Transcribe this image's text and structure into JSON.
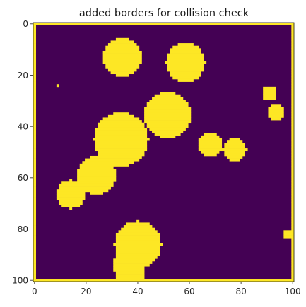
{
  "chart_data": {
    "type": "heatmap",
    "title": "added borders for collision check",
    "xlabel": "",
    "ylabel": "",
    "grid": false,
    "legend": "none",
    "colormap": "viridis",
    "colors": {
      "low": "#440154",
      "high": "#fde725"
    },
    "value_range": [
      0,
      1
    ],
    "grid_size": [
      101,
      101
    ],
    "xlim": [
      -0.5,
      100.5
    ],
    "ylim": [
      100.5,
      -0.5
    ],
    "x_ticks": [
      0,
      20,
      40,
      60,
      80,
      100
    ],
    "x_tick_labels": [
      "0",
      "20",
      "40",
      "60",
      "80",
      "100"
    ],
    "y_ticks": [
      0,
      20,
      40,
      60,
      80,
      100
    ],
    "y_tick_labels": [
      "0",
      "20",
      "40",
      "60",
      "80",
      "100"
    ],
    "border_width_cells": 1,
    "obstacles": [
      {
        "shape": "circle",
        "cx": 34,
        "cy": 13,
        "r": 7.5,
        "value": 1
      },
      {
        "shape": "circle",
        "cx": 58.5,
        "cy": 15,
        "r": 7.5,
        "value": 1
      },
      {
        "shape": "circle",
        "cx": 51.5,
        "cy": 35.5,
        "r": 9,
        "value": 1
      },
      {
        "shape": "circle",
        "cx": 33.5,
        "cy": 45,
        "r": 10.5,
        "value": 1
      },
      {
        "shape": "circle",
        "cx": 24,
        "cy": 59,
        "r": 7.5,
        "value": 1
      },
      {
        "shape": "circle",
        "cx": 14,
        "cy": 66.5,
        "r": 5.5,
        "value": 1
      },
      {
        "shape": "circle",
        "cx": 68,
        "cy": 47,
        "r": 4.5,
        "value": 1
      },
      {
        "shape": "circle",
        "cx": 77.5,
        "cy": 49,
        "r": 4.5,
        "value": 1
      },
      {
        "shape": "circle",
        "cx": 93.5,
        "cy": 34.5,
        "r": 3.5,
        "value": 1
      },
      {
        "shape": "rect",
        "x0": 89,
        "y0": 25,
        "x1": 93,
        "y1": 29,
        "value": 1
      },
      {
        "shape": "rect",
        "x0": 97,
        "y0": 81,
        "x1": 99,
        "y1": 83,
        "value": 1
      },
      {
        "shape": "rect",
        "x0": 9,
        "y0": 24,
        "x1": 9,
        "y1": 24,
        "value": 1
      },
      {
        "shape": "circle",
        "cx": 40,
        "cy": 86,
        "r": 9,
        "value": 1
      },
      {
        "shape": "circle",
        "cx": 36,
        "cy": 94,
        "r": 5.5,
        "value": 1
      },
      {
        "shape": "rect",
        "x0": 32,
        "y0": 90,
        "x1": 42,
        "y1": 99,
        "value": 1
      }
    ]
  }
}
